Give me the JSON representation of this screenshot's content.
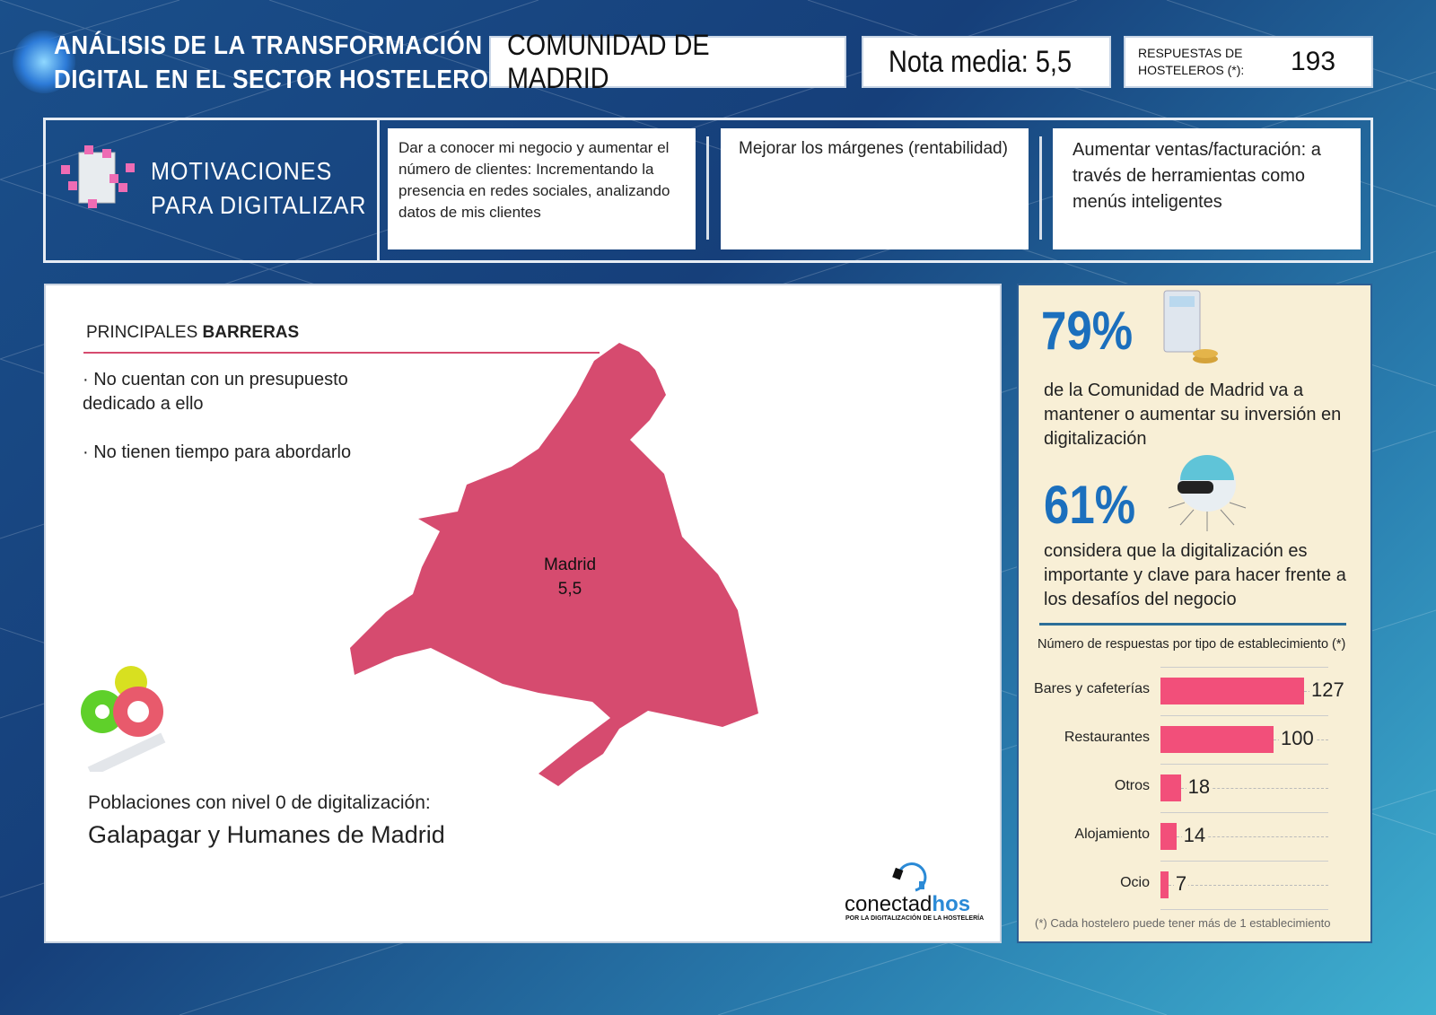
{
  "header": {
    "title_line1": "ANÁLISIS DE LA TRANSFORMACIÓN",
    "title_line2": "DIGITAL EN EL SECTOR HOSTELERO",
    "region": "COMUNIDAD DE MADRID",
    "score_label": "Nota media: 5,5",
    "responses_label_line1": "RESPUESTAS DE",
    "responses_label_line2": "HOSTELEROS (*):",
    "responses_value": "193"
  },
  "motivations": {
    "title_line1": "MOTIVACIONES",
    "title_line2": "PARA DIGITALIZAR",
    "items": [
      "Dar a conocer mi negocio y aumentar el número de clientes: Incrementando la presencia en redes sociales, analizando datos de mis clientes",
      "Mejorar los márgenes (rentabilidad)",
      "Aumentar ventas/facturación: a través de herramientas como menús inteligentes"
    ]
  },
  "barriers": {
    "title_prefix": "PRINCIPALES ",
    "title_bold": "BARRERAS",
    "items": [
      "· No cuentan con un presupuesto dedicado a ello",
      "· No tienen tiempo para abordarlo"
    ]
  },
  "map": {
    "region_name": "Madrid",
    "score": "5,5",
    "color": "#d64b6f"
  },
  "zero_level": {
    "label": "Poblaciones con nivel 0 de digitalización:",
    "towns": "Galapagar y Humanes de Madrid"
  },
  "logo": {
    "text_regular": "conectad",
    "text_bold": "hos",
    "tagline": "POR LA DIGITALIZACIÓN DE LA HOSTELERÍA"
  },
  "stats": [
    {
      "value": "79%",
      "text": "de la Comunidad de Madrid va a mantener o aumentar su inversión en digitalización"
    },
    {
      "value": "61%",
      "text": "considera que la digitalización es importante y clave para hacer frente a los desafíos del negocio"
    }
  ],
  "chart_data": {
    "type": "bar",
    "orientation": "horizontal",
    "title": "Número de respuestas por tipo de establecimiento (*)",
    "categories": [
      "Bares y cafeterías",
      "Restaurantes",
      "Otros",
      "Alojamiento",
      "Ocio"
    ],
    "values": [
      127,
      100,
      18,
      14,
      7
    ],
    "color": "#f24f7a",
    "footnote": "(*) Cada hostelero puede tener más de 1 establecimiento"
  }
}
